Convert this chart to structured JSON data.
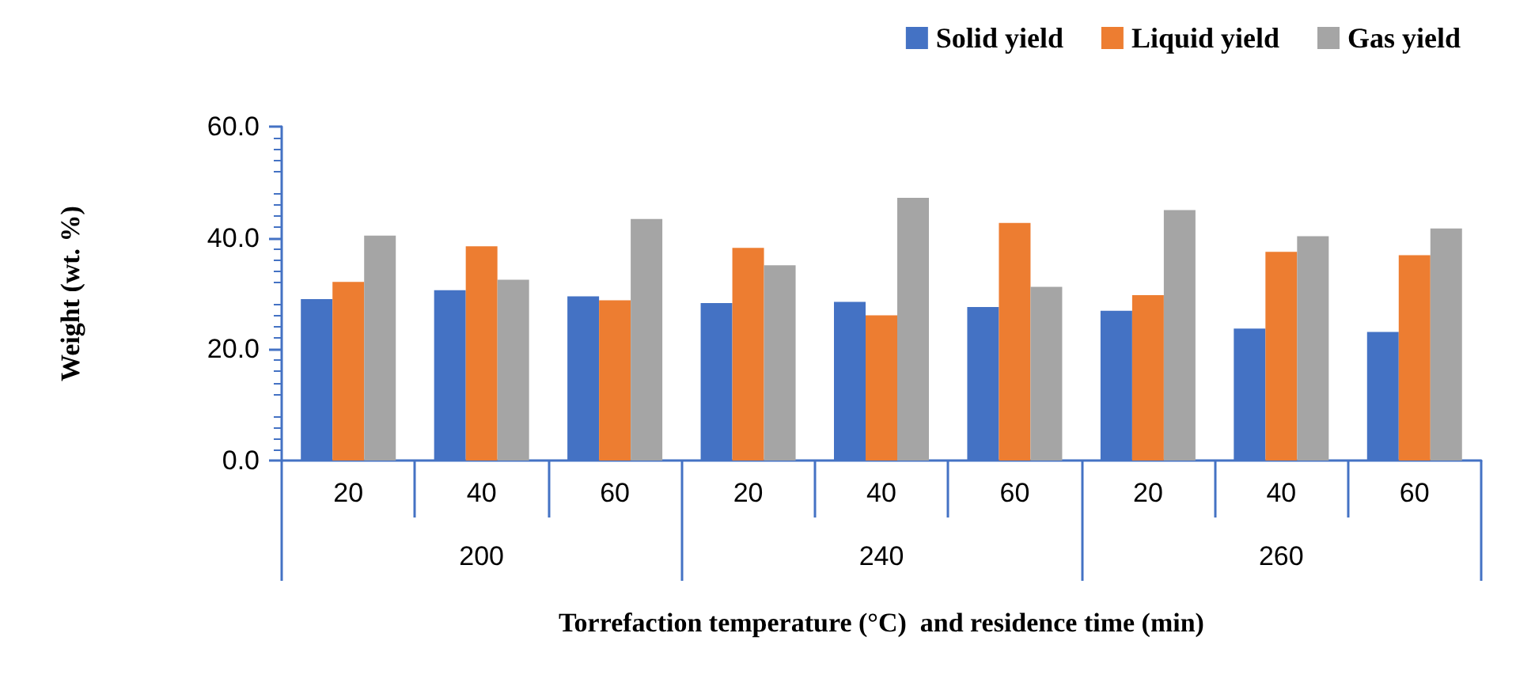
{
  "chart_data": {
    "type": "bar",
    "xlabel": "Torrefaction temperature (°C)  and residence time (min)",
    "ylabel": "Weight (wt. %)",
    "categories": [
      "20",
      "40",
      "60",
      "20",
      "40",
      "60",
      "20",
      "40",
      "60"
    ],
    "annotations": [
      "200",
      "240",
      "260"
    ],
    "series": [
      {
        "name": "Solid yield",
        "color": "#4472c4",
        "values": [
          29.0,
          30.6,
          29.5,
          28.3,
          28.5,
          27.6,
          26.9,
          23.7,
          23.1
        ]
      },
      {
        "name": "Liquid yield",
        "color": "#ed7d31",
        "values": [
          32.1,
          38.5,
          28.8,
          38.2,
          26.1,
          42.7,
          29.7,
          37.5,
          36.9
        ]
      },
      {
        "name": "Gas yield",
        "color": "#a5a5a5",
        "values": [
          40.4,
          32.5,
          43.4,
          35.1,
          47.2,
          31.2,
          45.0,
          40.3,
          41.7
        ]
      }
    ],
    "ylim": [
      0,
      60
    ],
    "yticks": [
      {
        "value": 0,
        "label": "0.0"
      },
      {
        "value": 20,
        "label": "20.0"
      },
      {
        "value": 40,
        "label": "40.0"
      },
      {
        "value": 60,
        "label": "60.0"
      }
    ],
    "grid": false,
    "legend": "top right"
  }
}
